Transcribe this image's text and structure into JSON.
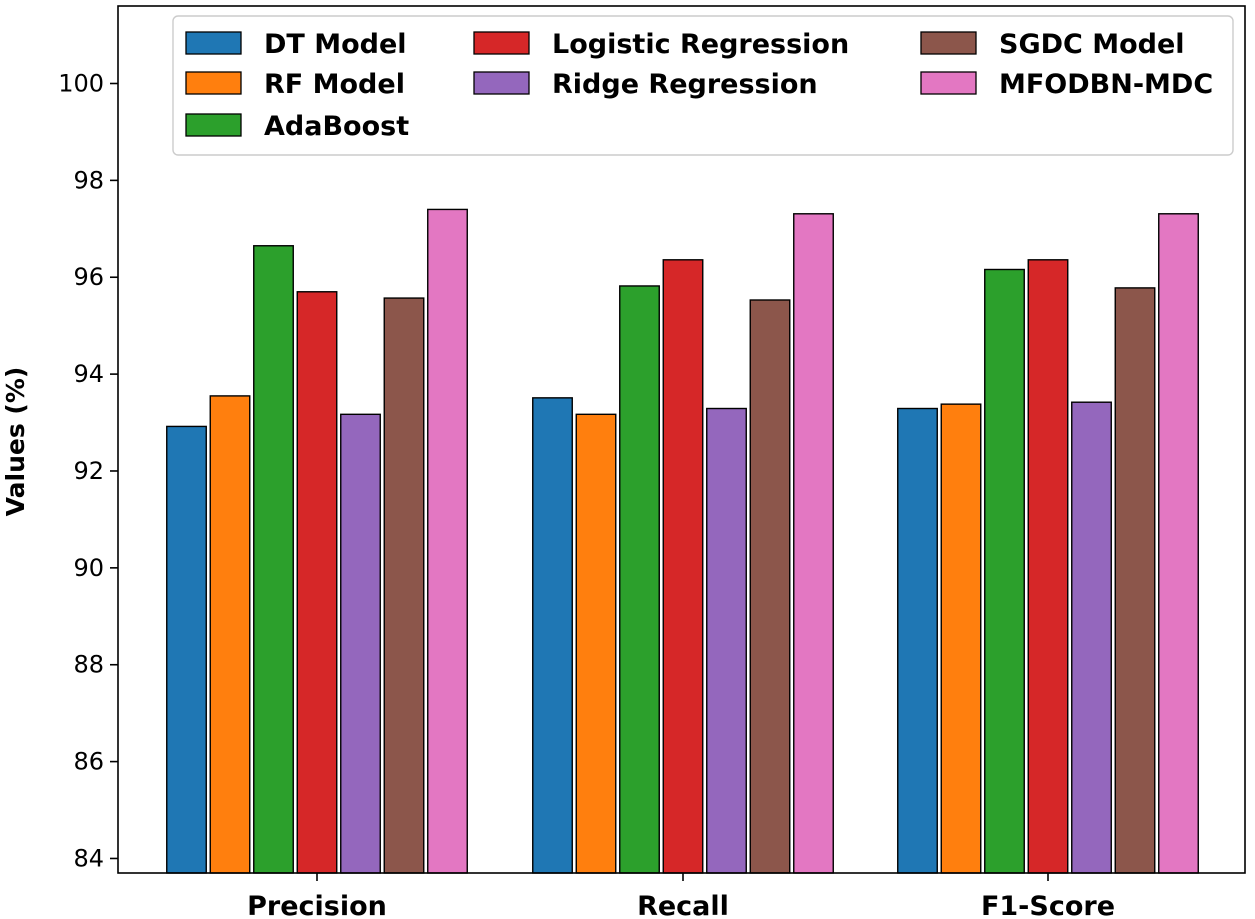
{
  "chart_data": {
    "type": "bar",
    "title": "",
    "xlabel": "",
    "ylabel": "Values (%)",
    "ylim": [
      83.7,
      101.6
    ],
    "yticks": [
      84,
      86,
      88,
      90,
      92,
      94,
      96,
      98,
      100
    ],
    "ytick_labels": [
      "84",
      "86",
      "88",
      "90",
      "92",
      "94",
      "96",
      "98",
      "100"
    ],
    "categories": [
      "Precision",
      "Recall",
      "F1-Score"
    ],
    "legend_position": "top",
    "series": [
      {
        "name": "DT Model",
        "color": "#1f77b4",
        "values": [
          92.92,
          93.51,
          93.29
        ]
      },
      {
        "name": "RF Model",
        "color": "#ff7f0e",
        "values": [
          93.55,
          93.17,
          93.38
        ]
      },
      {
        "name": "AdaBoost",
        "color": "#2ca02c",
        "values": [
          96.65,
          95.82,
          96.16
        ]
      },
      {
        "name": "Logistic Regression",
        "color": "#d62728",
        "values": [
          95.7,
          96.36,
          96.36
        ]
      },
      {
        "name": "Ridge Regression",
        "color": "#9467bd",
        "values": [
          93.17,
          93.29,
          93.42
        ]
      },
      {
        "name": "SGDC Model",
        "color": "#8c564b",
        "values": [
          95.57,
          95.53,
          95.78
        ]
      },
      {
        "name": "MFODBN-MDC",
        "color": "#e377c2",
        "values": [
          97.4,
          97.31,
          97.31
        ]
      }
    ]
  }
}
